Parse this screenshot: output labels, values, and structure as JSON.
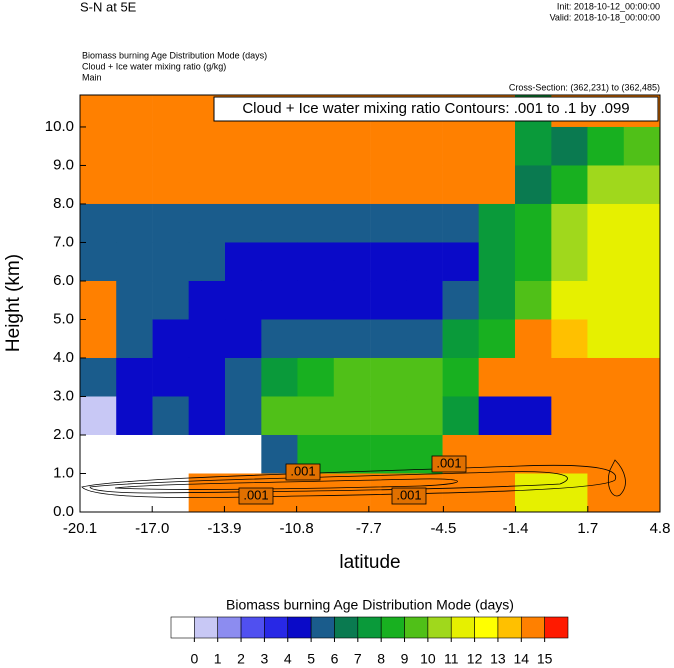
{
  "chart_data": {
    "type": "filled-contour",
    "title": "S-N at 5E",
    "init": "Init: 2018-10-12_00:00:00",
    "valid": "Valid: 2018-10-18_00:00:00",
    "field_names": [
      "Biomass burning Age Distribution Mode   (days)",
      "Cloud + Ice water mixing ratio   (g/kg)",
      "Main"
    ],
    "cross_section": "Cross-Section: (362,231) to (362,485)",
    "contour_info": "Cloud + Ice water mixing ratio Contours: .001 to .1 by .099",
    "contour_labels": [
      ".001",
      ".001",
      ".001",
      ".001"
    ],
    "x_label": "latitude",
    "y_label": "Height (km)",
    "xlim": [
      -20.1,
      4.8
    ],
    "xticks": [
      -20.1,
      {
        "value": -17,
        "label": "-17.0"
      },
      -13.9,
      -10.8,
      -7.7,
      -4.5,
      -1.4,
      1.7,
      4.8
    ],
    "ylim": [
      0,
      10.83
    ],
    "yticks": [
      {
        "value": 0,
        "label": "0.0"
      },
      {
        "value": 1,
        "label": "1.0"
      },
      {
        "value": 2,
        "label": "2.0"
      },
      {
        "value": 3,
        "label": "3.0"
      },
      {
        "value": 4,
        "label": "4.0"
      },
      {
        "value": 5,
        "label": "5.0"
      },
      {
        "value": 6,
        "label": "6.0"
      },
      {
        "value": 7,
        "label": "7.0"
      },
      {
        "value": 8,
        "label": "8.0"
      },
      {
        "value": 9,
        "label": "9.0"
      },
      {
        "value": 10,
        "label": "10.0"
      }
    ],
    "field": {
      "x": [
        -19.32,
        -17.77,
        -16.21,
        -14.66,
        -13.1,
        -11.54,
        -9.99,
        -8.43,
        -6.87,
        -5.32,
        -3.76,
        -2.21,
        -0.65,
        0.91,
        2.46,
        4.02
      ],
      "y": [
        10.5,
        9.5,
        8.5,
        7.5,
        6.5,
        5.5,
        4.5,
        3.5,
        2.5,
        1.5,
        0.5
      ],
      "values": [
        [
          14.5,
          14.5,
          14.5,
          14.5,
          14.5,
          14.5,
          14.5,
          14.5,
          14.5,
          14.5,
          14.5,
          14.5,
          7.5,
          14.5,
          14.5,
          14.5
        ],
        [
          14.5,
          14.5,
          14.5,
          14.5,
          14.5,
          14.5,
          14.5,
          14.5,
          14.5,
          14.5,
          14.5,
          14.5,
          7.5,
          6.5,
          8.5,
          9.5
        ],
        [
          14.5,
          14.5,
          14.5,
          14.5,
          14.5,
          14.5,
          14.5,
          14.5,
          14.5,
          14.5,
          14.5,
          14.5,
          6.5,
          8.5,
          10.5,
          10.5
        ],
        [
          5.5,
          5.5,
          5.5,
          5.5,
          5.5,
          5.5,
          5.5,
          5.5,
          5.5,
          5.5,
          5.5,
          7.5,
          8.5,
          10.5,
          11.5,
          11.5
        ],
        [
          5.5,
          5.5,
          5.5,
          5.5,
          4.5,
          4.5,
          4.5,
          4.5,
          4.5,
          4.5,
          4.5,
          7.5,
          8.5,
          10.5,
          11.5,
          11.5
        ],
        [
          14.5,
          5.5,
          5.5,
          4.5,
          4.5,
          4.5,
          4.5,
          4.5,
          4.5,
          4.5,
          5.5,
          7.5,
          9.5,
          11.5,
          11.5,
          11.5
        ],
        [
          14.5,
          5.5,
          4.5,
          4.5,
          4.5,
          5.5,
          5.5,
          5.5,
          5.5,
          5.5,
          7.5,
          8.5,
          14.5,
          13.5,
          11.5,
          11.5
        ],
        [
          5.5,
          4.5,
          4.5,
          4.5,
          5.5,
          7.5,
          8.5,
          9.5,
          9.5,
          9.5,
          8.5,
          14.5,
          14.5,
          14.5,
          14.5,
          14.5
        ],
        [
          0.5,
          4.5,
          5.5,
          4.5,
          5.5,
          9.5,
          9.5,
          9.5,
          9.5,
          9.5,
          7.5,
          4.5,
          4.5,
          14.5,
          14.5,
          14.5
        ],
        [
          -1,
          -1,
          -1,
          -1,
          -1,
          5.5,
          8.5,
          8.5,
          8.5,
          8.5,
          14.5,
          14.5,
          14.5,
          14.5,
          14.5,
          14.5
        ],
        [
          -1,
          -1,
          -1,
          14.5,
          14.5,
          14.5,
          14.5,
          14.5,
          14.5,
          14.5,
          14.5,
          14.5,
          11.5,
          11.5,
          14.5,
          14.5
        ]
      ]
    },
    "colorbar": {
      "title": "Biomass burning Age Distribution Mode  (days)",
      "levels": [
        0,
        1,
        2,
        3,
        4,
        5,
        6,
        7,
        8,
        9,
        10,
        11,
        12,
        13,
        14,
        15
      ],
      "colors": [
        "#ffffff",
        "#c8c8f5",
        "#8c8cf0",
        "#5050f0",
        "#2828e6",
        "#0a0ac8",
        "#1a5c8c",
        "#0a7a50",
        "#0a9a3a",
        "#18b020",
        "#50c018",
        "#a0d81c",
        "#e6f000",
        "#ffff00",
        "#ffc000",
        "#ff8000",
        "#ff1a00"
      ]
    }
  }
}
